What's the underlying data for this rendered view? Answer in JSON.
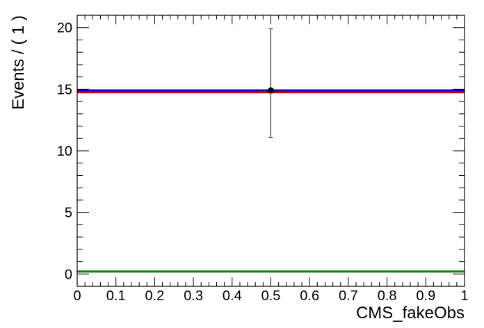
{
  "chart_data": {
    "type": "scatter",
    "xlabel": "CMS_fakeObs",
    "ylabel": "Events / ( 1 )",
    "xlim": [
      0,
      1
    ],
    "ylim": [
      -1.0,
      21.0
    ],
    "x_ticks": [
      0,
      0.1,
      0.2,
      0.3,
      0.4,
      0.5,
      0.6,
      0.7,
      0.8,
      0.9,
      1
    ],
    "x_tick_labels": [
      "0",
      "0.1",
      "0.2",
      "0.3",
      "0.4",
      "0.5",
      "0.6",
      "0.7",
      "0.8",
      "0.9",
      "1"
    ],
    "y_ticks": [
      0,
      5,
      10,
      15,
      20
    ],
    "y_tick_labels": [
      "0",
      "5",
      "10",
      "15",
      "20"
    ],
    "grid": false,
    "points": [
      {
        "x": 0.5,
        "y": 14.9,
        "yerr_low": 11.1,
        "yerr_high": 19.9
      }
    ],
    "lines": [
      {
        "y": 14.9,
        "color": "#0000cc"
      },
      {
        "y": 14.75,
        "color": "#cc0000"
      },
      {
        "y": 0.2,
        "color": "#008800"
      }
    ],
    "point_color": "#000000"
  }
}
